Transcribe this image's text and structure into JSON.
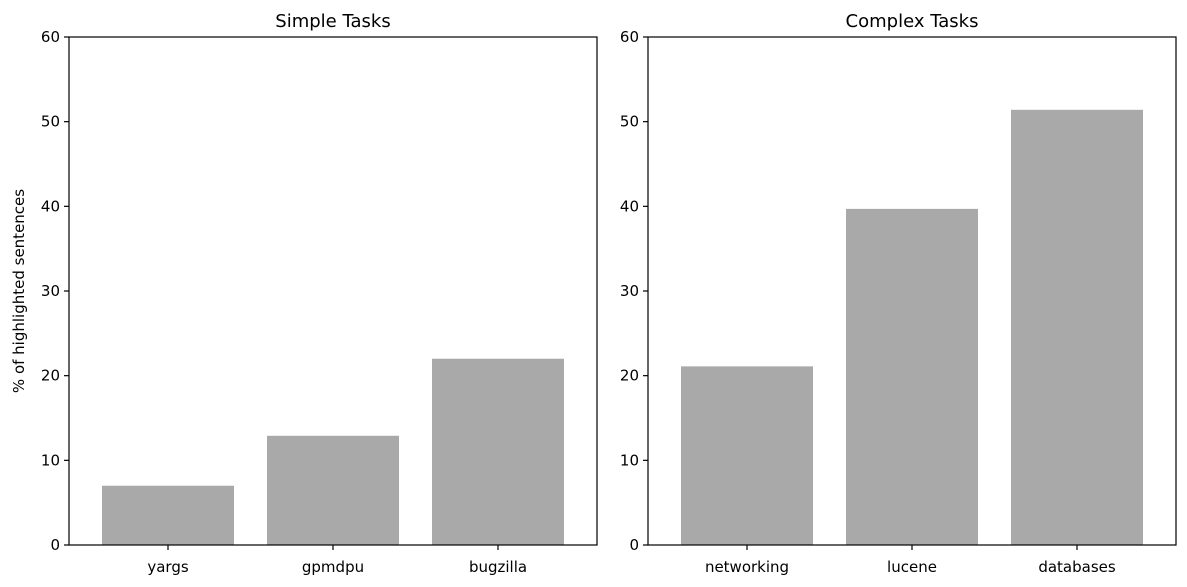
{
  "chart_data": [
    {
      "type": "bar",
      "title": "Simple Tasks",
      "xlabel": "",
      "ylabel": "% of highlighted sentences",
      "categories": [
        "yargs",
        "gpmdpu",
        "bugzilla"
      ],
      "values": [
        7.0,
        12.9,
        22.0
      ],
      "ylim": [
        0,
        60
      ],
      "yticks": [
        0,
        10,
        20,
        30,
        40,
        50,
        60
      ],
      "bar_color": "#a9a9a9",
      "grid": false
    },
    {
      "type": "bar",
      "title": "Complex Tasks",
      "xlabel": "",
      "ylabel": "",
      "categories": [
        "networking",
        "lucene",
        "databases"
      ],
      "values": [
        21.1,
        39.7,
        51.4
      ],
      "ylim": [
        0,
        60
      ],
      "yticks": [
        0,
        10,
        20,
        30,
        40,
        50,
        60
      ],
      "bar_color": "#a9a9a9",
      "grid": false
    }
  ]
}
